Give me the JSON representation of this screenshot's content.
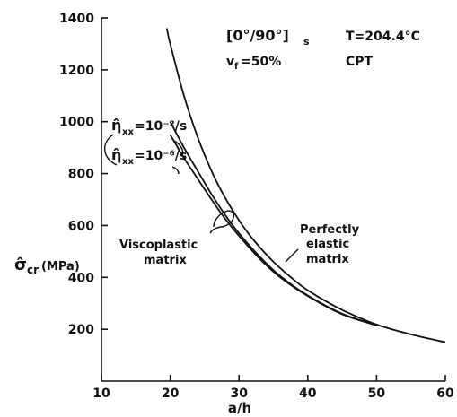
{
  "chart_data": {
    "type": "line",
    "title": "",
    "xlabel": "a/h",
    "ylabel_main": "σ̂",
    "ylabel_sub": "cr",
    "ylabel_unit": "(MPa)",
    "xlim": [
      10,
      60
    ],
    "ylim": [
      0,
      1400
    ],
    "xticks": [
      10,
      20,
      30,
      40,
      50,
      60
    ],
    "yticks": [
      200,
      400,
      600,
      800,
      1000,
      1200,
      1400
    ],
    "grid": false,
    "series": [
      {
        "name": "Perfectly elastic matrix",
        "x": [
          19.5,
          20,
          22,
          24,
          26,
          28,
          30,
          32,
          35,
          38,
          40,
          43,
          46,
          50,
          55,
          60
        ],
        "y": [
          1360,
          1300,
          1100,
          940,
          810,
          706,
          620,
          548,
          460,
          390,
          350,
          302,
          262,
          218,
          180,
          150
        ]
      },
      {
        "name": "Viscoplastic matrix, η̂xx = 10⁻²/s",
        "x": [
          20,
          22,
          24,
          26,
          28,
          30,
          33,
          36,
          40,
          45,
          50
        ],
        "y": [
          1000,
          900,
          810,
          720,
          640,
          570,
          480,
          405,
          330,
          260,
          215
        ]
      },
      {
        "name": "Viscoplastic matrix, η̂xx = 10⁻⁶/s",
        "x": [
          20,
          22,
          24,
          26,
          28,
          30,
          33,
          36,
          40,
          45,
          50
        ],
        "y": [
          950,
          860,
          780,
          700,
          625,
          560,
          472,
          400,
          328,
          258,
          215
        ]
      }
    ],
    "annotations": {
      "layup_main": "[0°/90°]",
      "layup_sub": "s",
      "temperature": "T=204.4°C",
      "vf_main": "v",
      "vf_sub": "f",
      "vf_value": "=50%",
      "test": "CPT",
      "rate1_main": "η̂",
      "rate1_sub": "xx",
      "rate1_value": "=10⁻²/s",
      "rate2_main": "η̂",
      "rate2_sub": "xx",
      "rate2_value": "=10⁻⁶/s",
      "visco_line1": "Viscoplastic",
      "visco_line2": "matrix",
      "elastic_line1": "Perfectly",
      "elastic_line2": "elastic",
      "elastic_line3": "matrix"
    }
  }
}
